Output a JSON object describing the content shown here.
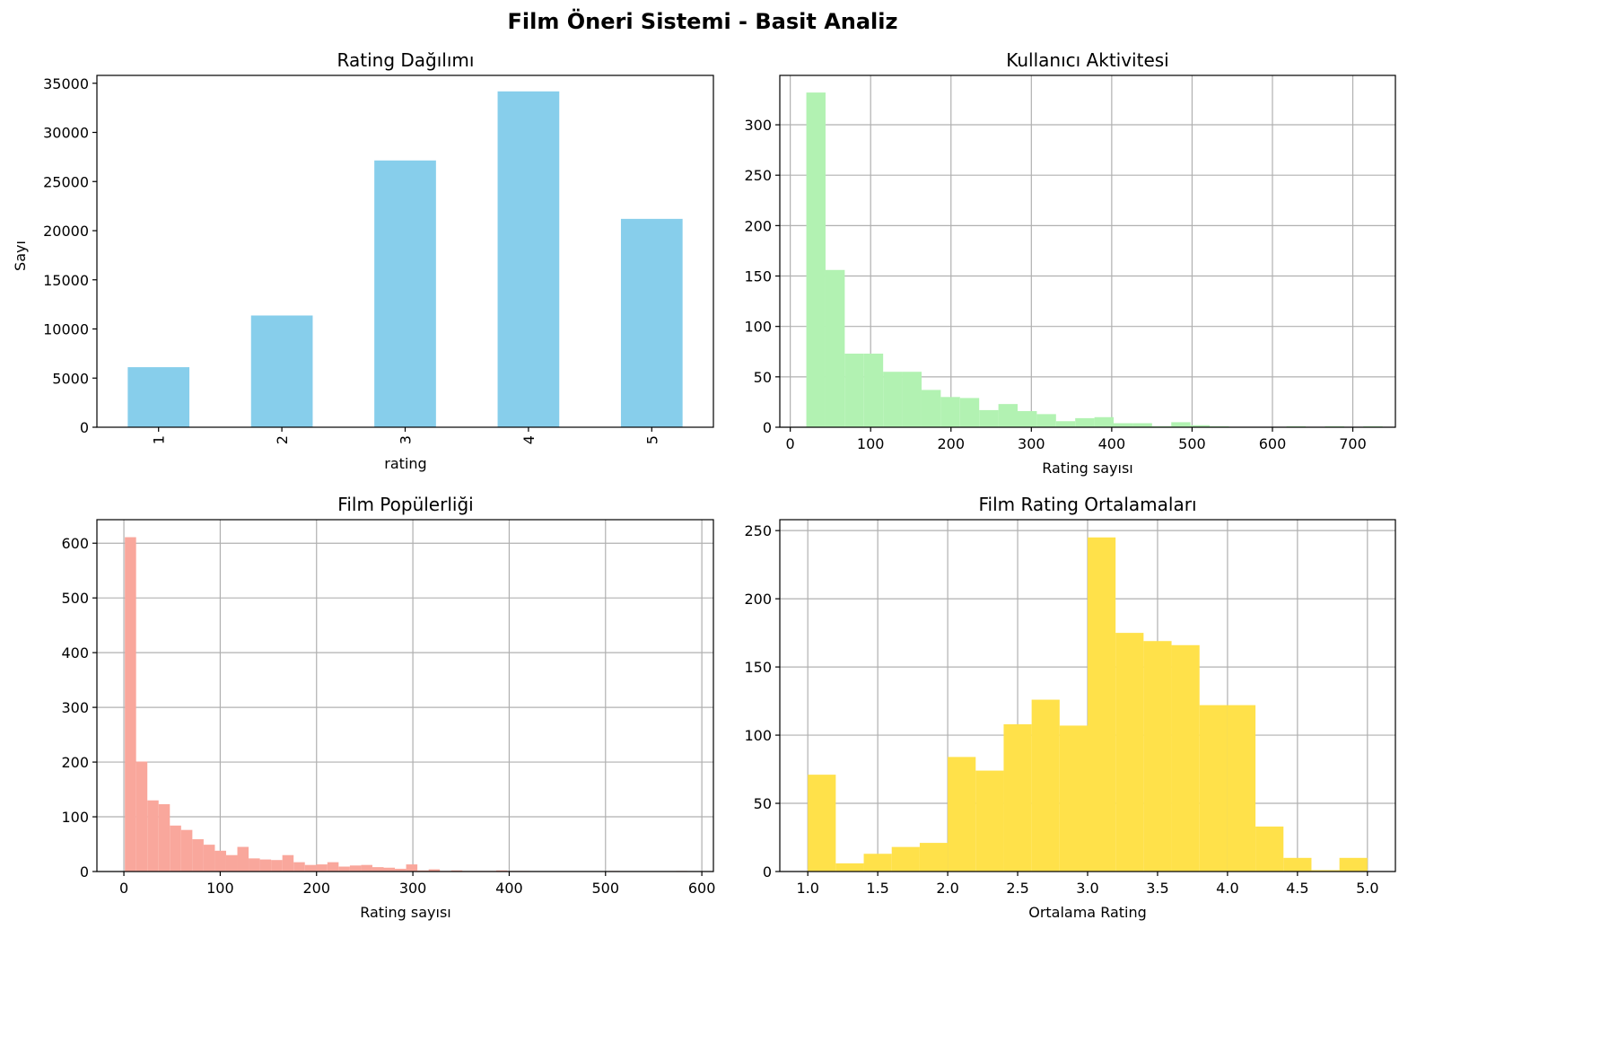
{
  "title": "Film Öneri Sistemi - Basit Analiz",
  "chart_data": [
    {
      "type": "bar",
      "title": "Rating Dağılımı",
      "xlabel": "rating",
      "ylabel": "Sayı",
      "categories": [
        "1",
        "2",
        "3",
        "4",
        "5"
      ],
      "values": [
        6110,
        11370,
        27145,
        34174,
        21201
      ],
      "ylim": [
        0,
        35800
      ],
      "yticks": [
        0,
        5000,
        10000,
        15000,
        20000,
        25000,
        30000,
        35000
      ],
      "color": "#87ceeb",
      "grid": false,
      "xtick_rotation": -90
    },
    {
      "type": "bar",
      "histogram": true,
      "title": "Kullanıcı Aktivitesi",
      "xlabel": "Rating sayısı",
      "ylabel": "",
      "bin_start": 20,
      "bin_width": 23.9,
      "counts": [
        332,
        156,
        73,
        73,
        55,
        55,
        37,
        30,
        29,
        17,
        23,
        16,
        13,
        6,
        9,
        10,
        4,
        4,
        1,
        5,
        2,
        1,
        0,
        0,
        0,
        1,
        0,
        1,
        0,
        1
      ],
      "xlim": [
        -13,
        753
      ],
      "ylim": [
        0,
        349
      ],
      "xticks": [
        0,
        100,
        200,
        300,
        400,
        500,
        600,
        700
      ],
      "yticks": [
        0,
        50,
        100,
        150,
        200,
        250,
        300
      ],
      "color": "#b2f2b2",
      "grid": true
    },
    {
      "type": "bar",
      "histogram": true,
      "title": "Film Popülerliği",
      "xlabel": "Rating sayısı",
      "ylabel": "",
      "bin_start": 1,
      "bin_width": 11.68,
      "counts": [
        611,
        201,
        130,
        123,
        84,
        76,
        59,
        49,
        38,
        30,
        45,
        24,
        22,
        21,
        30,
        17,
        12,
        13,
        17,
        9,
        11,
        12,
        8,
        7,
        5,
        13,
        2,
        4,
        1,
        2,
        1,
        1,
        1,
        2,
        1,
        1,
        0,
        0,
        0,
        0,
        0,
        0,
        0,
        1,
        0,
        0,
        0,
        0,
        0,
        1
      ],
      "xlim": [
        -28,
        612
      ],
      "ylim": [
        0,
        643
      ],
      "xticks": [
        0,
        100,
        200,
        300,
        400,
        500,
        600
      ],
      "yticks": [
        0,
        100,
        200,
        300,
        400,
        500,
        600
      ],
      "color": "#f9a79c",
      "grid": true
    },
    {
      "type": "bar",
      "histogram": true,
      "title": "Film Rating Ortalamaları",
      "xlabel": "Ortalama Rating",
      "ylabel": "",
      "bin_start": 1.0,
      "bin_width": 0.2,
      "counts": [
        71,
        6,
        13,
        18,
        21,
        84,
        74,
        108,
        126,
        107,
        245,
        175,
        169,
        166,
        122,
        122,
        33,
        10,
        1,
        10
      ],
      "xlim": [
        0.8,
        5.2
      ],
      "ylim": [
        0,
        258
      ],
      "xticks": [
        "1.0",
        "1.5",
        "2.0",
        "2.5",
        "3.0",
        "3.5",
        "4.0",
        "4.5",
        "5.0"
      ],
      "yticks": [
        0,
        50,
        100,
        150,
        200,
        250
      ],
      "color": "#ffe14a",
      "grid": true
    }
  ]
}
